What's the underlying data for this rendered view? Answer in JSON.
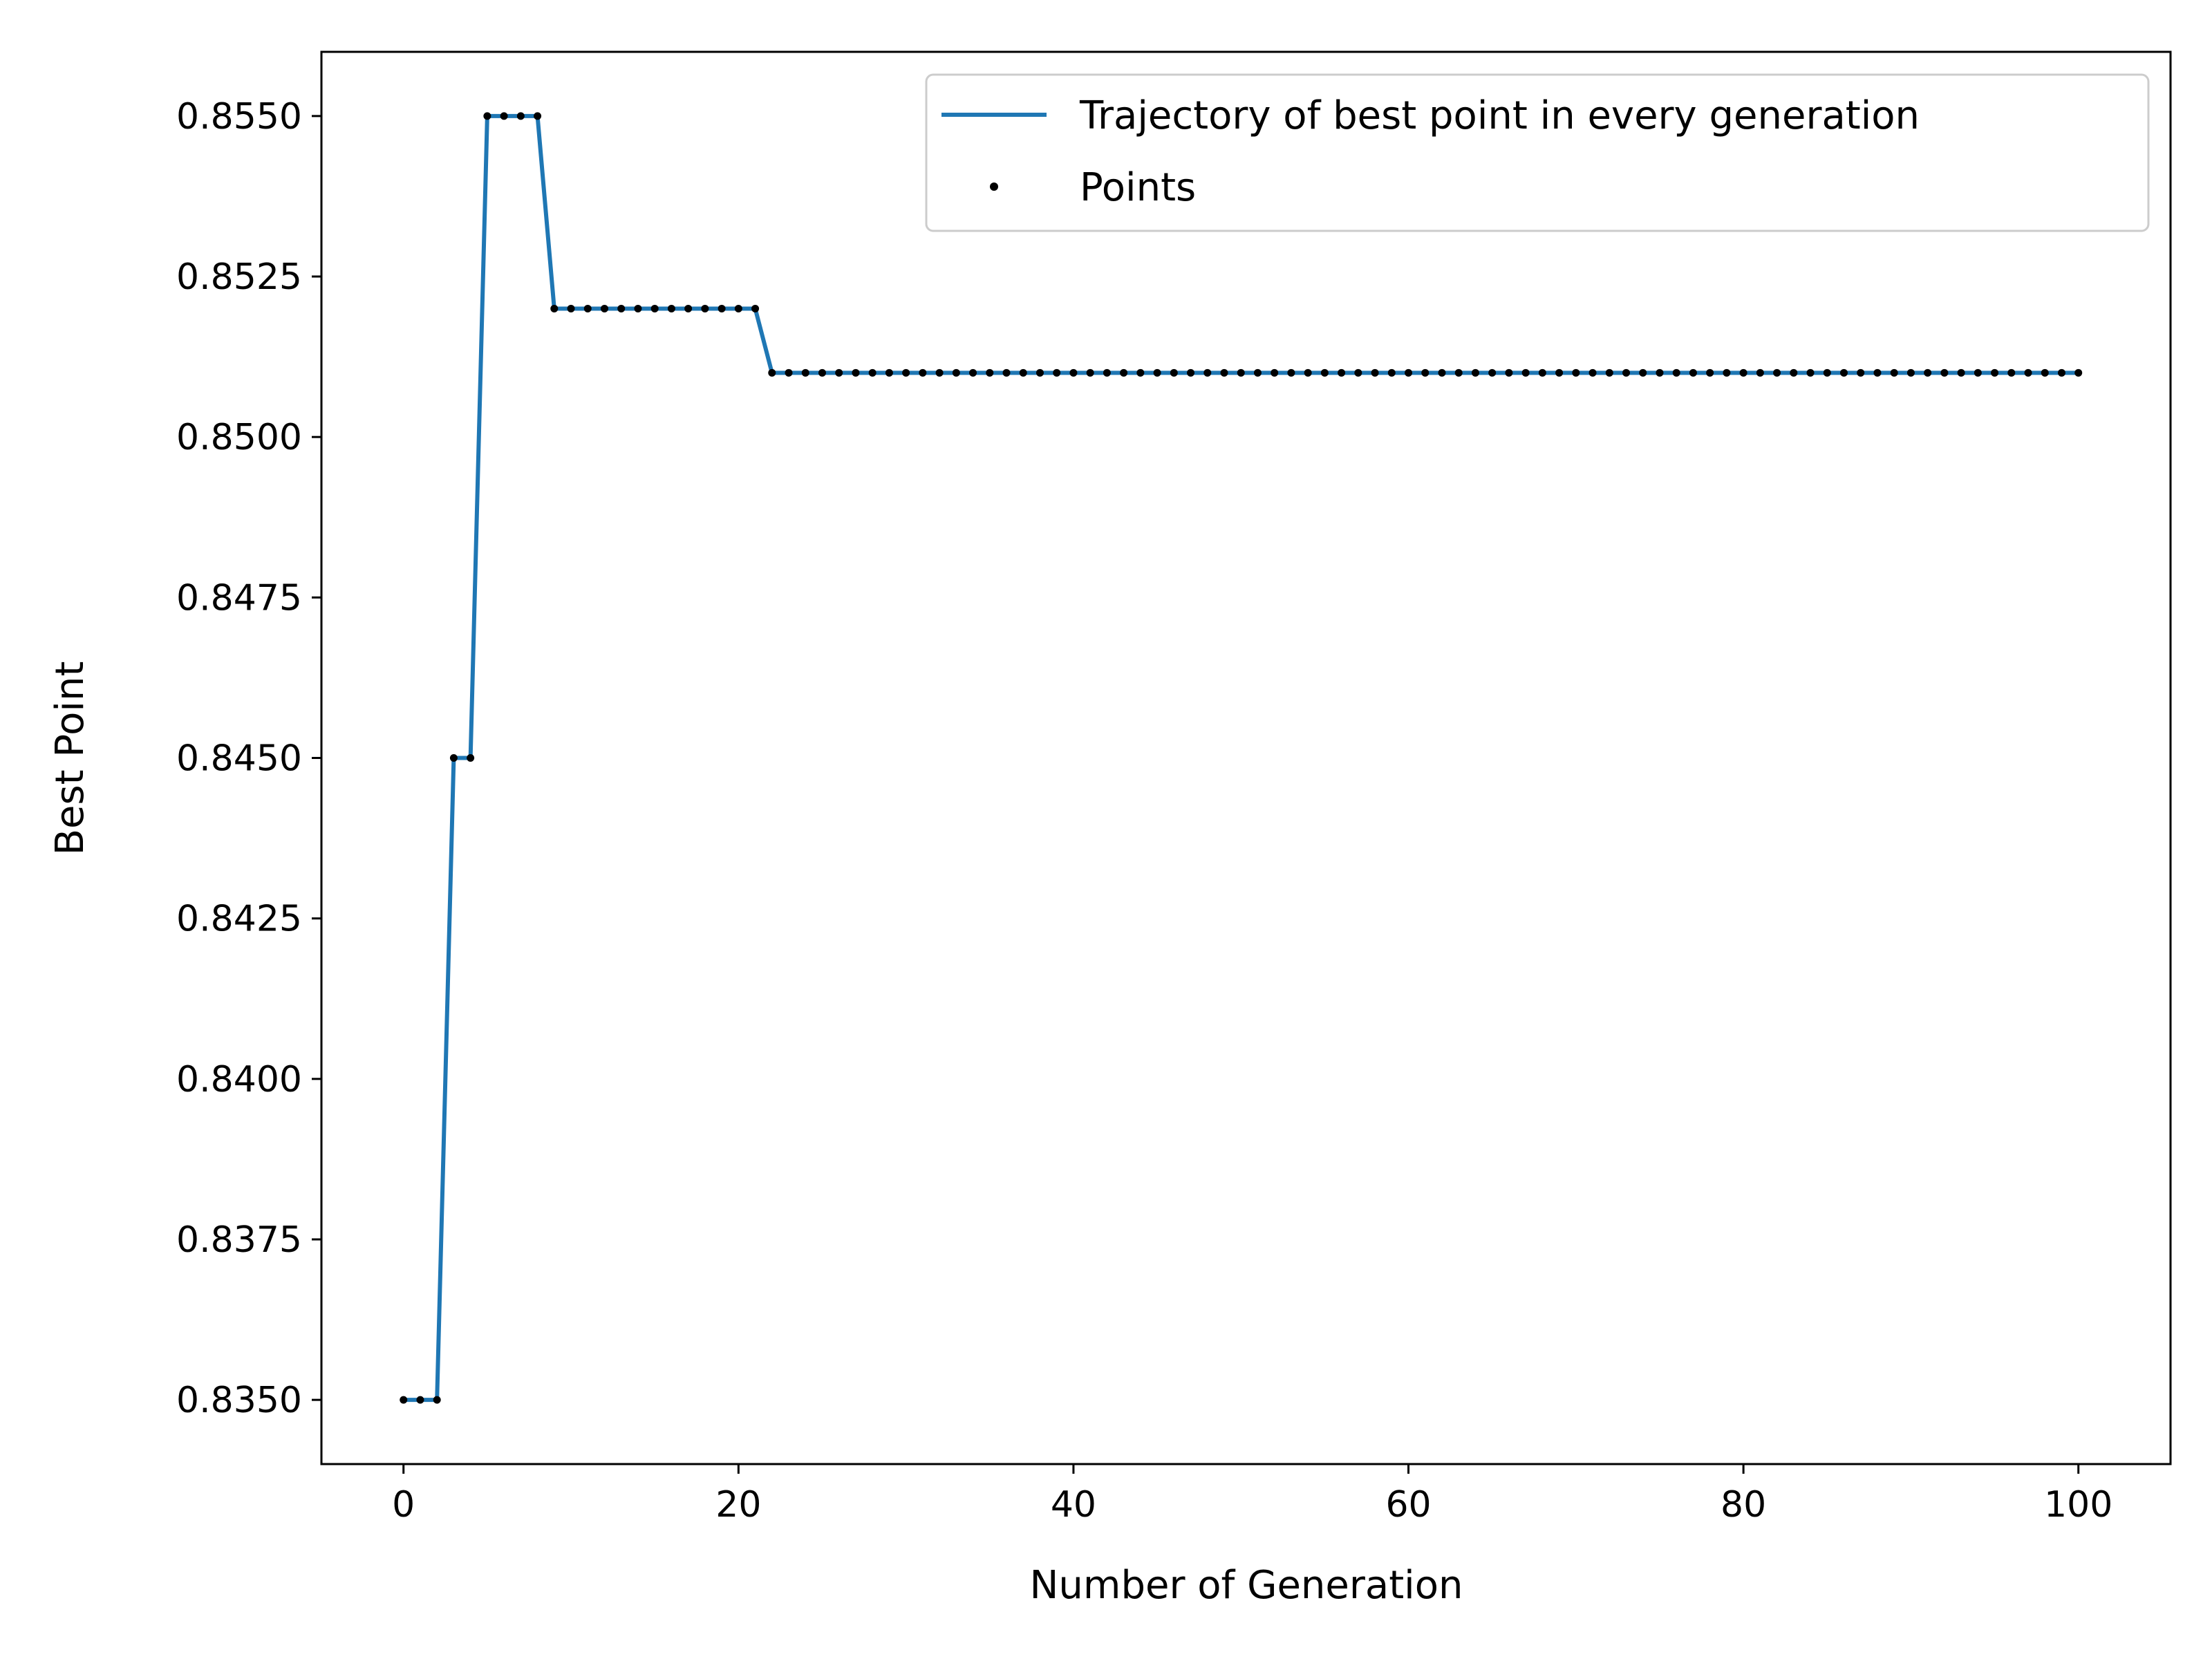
{
  "chart_data": {
    "type": "line",
    "title": "",
    "xlabel": "Number of Generation",
    "ylabel": "Best Point",
    "xlim": [
      -4.9,
      105.5
    ],
    "ylim": [
      0.834,
      0.856
    ],
    "x_ticks": [
      0,
      20,
      40,
      60,
      80,
      100
    ],
    "x_tick_labels": [
      "0",
      "20",
      "40",
      "60",
      "80",
      "100"
    ],
    "y_ticks": [
      0.835,
      0.8375,
      0.84,
      0.8425,
      0.845,
      0.8475,
      0.85,
      0.8525,
      0.855
    ],
    "y_tick_labels": [
      "0.8350",
      "0.8375",
      "0.8400",
      "0.8425",
      "0.8450",
      "0.8475",
      "0.8500",
      "0.8525",
      "0.8550"
    ],
    "grid": false,
    "legend_position": "top-right",
    "colors": {
      "line": "#1f77b4",
      "points": "#000000",
      "axes": "#000000"
    },
    "segments": [
      {
        "from": 0,
        "to": 2,
        "value": 0.835
      },
      {
        "from": 3,
        "to": 4,
        "value": 0.845
      },
      {
        "from": 5,
        "to": 8,
        "value": 0.855
      },
      {
        "from": 9,
        "to": 21,
        "value": 0.852
      },
      {
        "from": 22,
        "to": 100,
        "value": 0.851
      }
    ],
    "series": [
      {
        "name": "Trajectory of best point in every generation",
        "style": "line"
      },
      {
        "name": "Points",
        "style": "markers"
      }
    ]
  }
}
